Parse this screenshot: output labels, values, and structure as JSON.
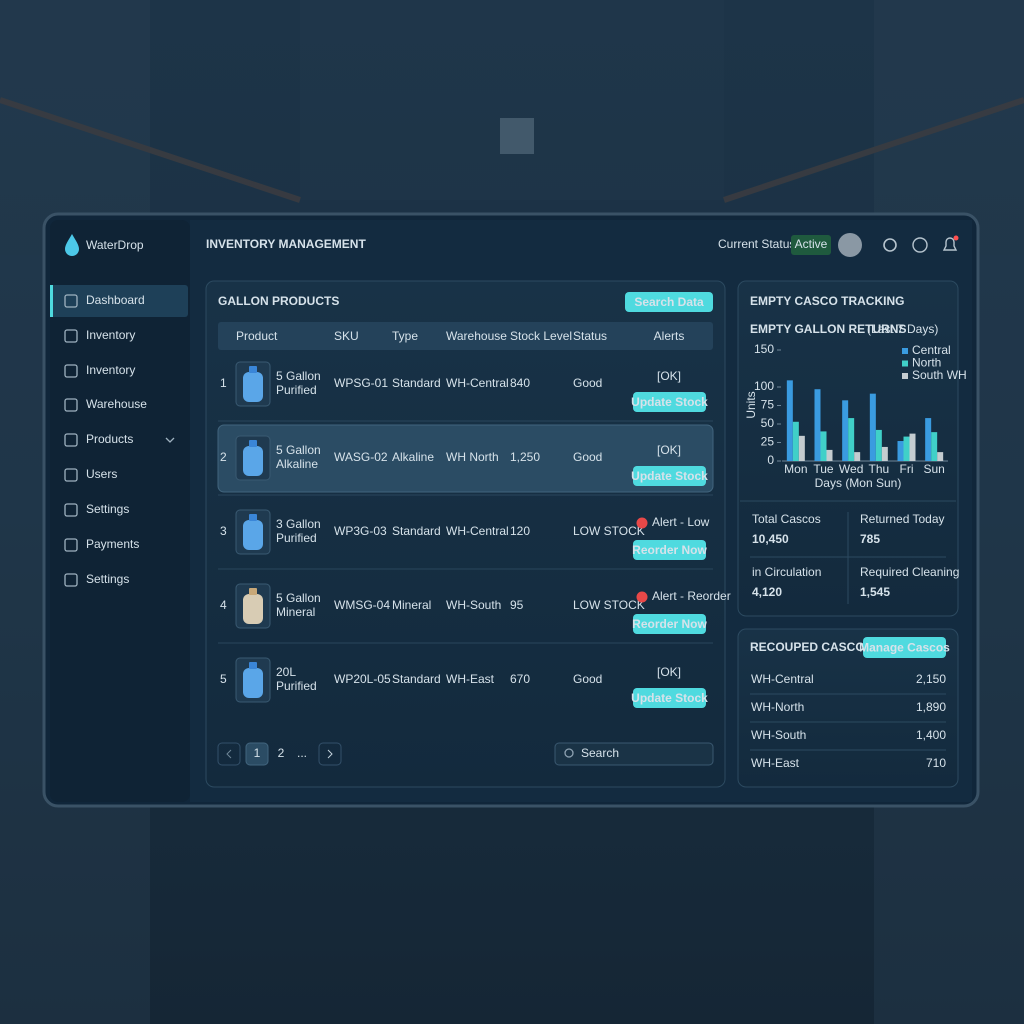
{
  "brand": "WaterDrop",
  "header": {
    "title": "INVENTORY MANAGEMENT",
    "status_label": "Current Status:",
    "status": "Active"
  },
  "sidebar": [
    "Dashboard",
    "Inventory",
    "Inventory",
    "Warehouse",
    "Products",
    "Users",
    "Settings",
    "Payments",
    "Settings"
  ],
  "products": {
    "title": "GALLON PRODUCTS",
    "button": "Search Data",
    "columns": [
      "Product",
      "SKU",
      "Type",
      "Warehouse",
      "Stock Level",
      "Status",
      "Alerts"
    ],
    "rows": [
      {
        "no": "1",
        "product": [
          "5 Gallon",
          "Purified"
        ],
        "sku": "WPSG-01",
        "type": "Standard",
        "warehouse": "WH-Central",
        "stock": "840",
        "status": "Good",
        "ok": "[OK]",
        "action": "Update Stock"
      },
      {
        "no": "2",
        "product": [
          "5 Gallon",
          "Alkaline"
        ],
        "sku": "WASG-02",
        "type": "Alkaline",
        "warehouse": "WH North",
        "stock": "1,250",
        "status": "Good",
        "ok": "[OK]",
        "action": "Update Stock"
      },
      {
        "no": "3",
        "product": [
          "3 Gallon",
          "Purified"
        ],
        "sku": "WP3G-03",
        "type": "Standard",
        "warehouse": "WH-Central",
        "stock": "120",
        "status": "LOW STOCK",
        "alert": "Alert - Low",
        "action": "Reorder Now"
      },
      {
        "no": "4",
        "product": [
          "5 Gallon",
          "Mineral"
        ],
        "sku": "WMSG-04",
        "type": "Mineral",
        "warehouse": "WH-South",
        "stock": "95",
        "status": "LOW STOCK",
        "alert": "Alert - Reorder",
        "action": "Reorder Now"
      },
      {
        "no": "5",
        "product": [
          "20L",
          "Purified"
        ],
        "sku": "WP20L-05",
        "type": "Standard",
        "warehouse": "WH-East",
        "stock": "670",
        "status": "Good",
        "ok": "[OK]",
        "action": "Update Stock"
      }
    ],
    "pages": [
      "1",
      "2",
      "..."
    ],
    "search": "Search"
  },
  "casco": {
    "title": "EMPTY CASCO TRACKING",
    "chart_data": {
      "type": "bar",
      "title": "EMPTY GALLON RETURNS",
      "subtitle": "(Last 7 Days)",
      "y_label": "Units",
      "x_label": "Days (Mon Sun)",
      "categories": [
        "Mon",
        "Tue",
        "Wed",
        "Thu",
        "Fri",
        "Sun"
      ],
      "series": [
        {
          "name": "Central",
          "color": "#3a9be0",
          "values": [
            109,
            97,
            82,
            91,
            27,
            58
          ]
        },
        {
          "name": "North",
          "color": "#40d0c8",
          "values": [
            53,
            40,
            58,
            42,
            33,
            39
          ]
        },
        {
          "name": "South WH",
          "color": "#c4ccd0",
          "values": [
            34,
            15,
            12,
            19,
            37,
            12
          ]
        }
      ],
      "ylim": [
        0,
        150
      ],
      "yticks": [
        0,
        25,
        50,
        75,
        100,
        150
      ],
      "legend": "upper right"
    },
    "stats": [
      {
        "label": "Total Cascos",
        "value": "10,450"
      },
      {
        "label": "Returned Today",
        "value": "785"
      },
      {
        "label": "in Circulation",
        "value": "4,120"
      },
      {
        "label": "Required Cleaning",
        "value": "1,545"
      }
    ]
  },
  "recouped": {
    "title": "RECOUPED CASCOS",
    "button": "Manage Cascos",
    "rows": [
      {
        "warehouse": "WH-Central",
        "count": "2,150"
      },
      {
        "warehouse": "WH-North",
        "count": "1,890"
      },
      {
        "warehouse": "WH-South",
        "count": "1,400"
      },
      {
        "warehouse": "WH-East",
        "count": "710"
      }
    ]
  }
}
